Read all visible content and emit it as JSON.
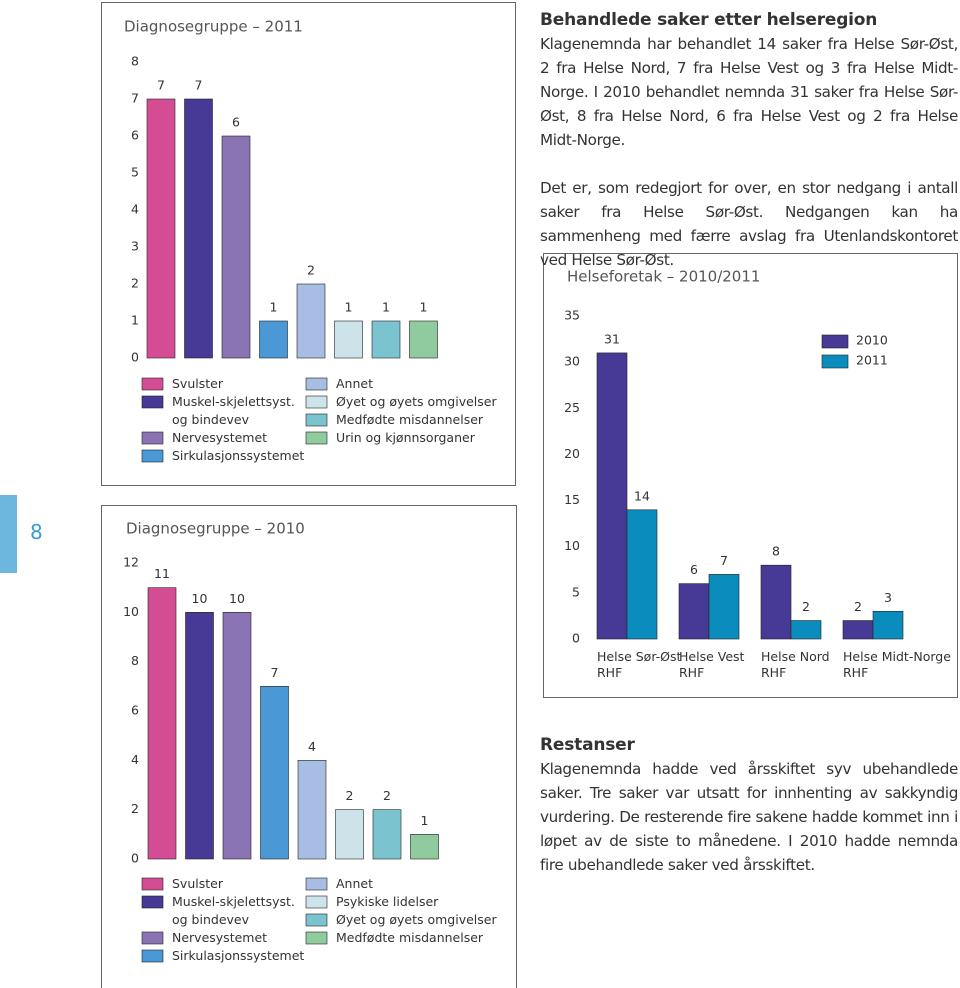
{
  "page_number": "8",
  "sections": [
    {
      "heading": "Behandlede saker etter helseregion",
      "paragraphs": [
        "Klagenemnda har behandlet 14 saker fra Helse Sør-Øst, 2 fra Helse Nord, 7 fra Helse Vest og 3 fra Helse Midt-Norge. I 2010 behandlet nemnda 31 saker fra Helse Sør-Øst, 8 fra Helse Nord, 6 fra Helse Vest og 2 fra Helse Midt-Norge.",
        "Det er, som redegjort for over, en stor nedgang i antall saker fra Helse Sør-Øst. Nedgangen kan ha sammenheng med færre avslag fra Utenlandskontoret ved Helse Sør-Øst."
      ]
    },
    {
      "heading": "Restanser",
      "paragraphs": [
        "Klagenemnda hadde ved årsskiftet syv ubehandlede saker. Tre saker var utsatt for innhenting av sakkyndig vurdering. De resterende fire sakene hadde kommet inn i løpet av de siste to månedene. I 2010 hadde nemnda fire ubehandlede saker ved årsskiftet."
      ]
    }
  ],
  "chart_data": [
    {
      "type": "bar",
      "title": "Diagnosegruppe – 2011",
      "categories": [
        "Svulster",
        "Muskel-skjelettsyst. og bindevev",
        "Nervesystemet",
        "Sirkulasjonssystemet",
        "Annet",
        "Øyet og øyets omgivelser",
        "Medfødte misdannelser",
        "Urin og kjønnsorganer"
      ],
      "values": [
        7,
        7,
        6,
        1,
        2,
        1,
        1,
        1
      ],
      "colors": [
        "#d44d94",
        "#463a96",
        "#8a74b3",
        "#4a98d6",
        "#a8bde4",
        "#cce3ea",
        "#7bc4cf",
        "#8fcb9e"
      ],
      "ylim": [
        0,
        8
      ],
      "yticks": [
        0,
        1,
        2,
        3,
        4,
        5,
        6,
        7,
        8
      ],
      "grid": false
    },
    {
      "type": "bar",
      "title": "Diagnosegruppe – 2010",
      "categories": [
        "Svulster",
        "Muskel-skjelettsyst. og bindevev",
        "Nervesystemet",
        "Sirkulasjonssystemet",
        "Annet",
        "Psykiske lidelser",
        "Øyet og øyets omgivelser",
        "Medfødte misdannelser"
      ],
      "values": [
        11,
        10,
        10,
        7,
        4,
        2,
        2,
        1
      ],
      "colors": [
        "#d44d94",
        "#463a96",
        "#8a74b3",
        "#4a98d6",
        "#a8bde4",
        "#cce3ea",
        "#7bc4cf",
        "#8fcb9e"
      ],
      "ylim": [
        0,
        12
      ],
      "yticks": [
        0,
        2,
        4,
        6,
        8,
        10,
        12
      ],
      "grid": false
    },
    {
      "type": "grouped-bar",
      "title": "Helseforetak – 2010/2011",
      "categories": [
        "Helse Sør-Øst RHF",
        "Helse Vest RHF",
        "Helse Nord RHF",
        "Helse Midt-Norge RHF"
      ],
      "series": [
        {
          "name": "2010",
          "color": "#463a96",
          "values": [
            31,
            6,
            8,
            2
          ]
        },
        {
          "name": "2011",
          "color": "#0a8dbd",
          "values": [
            14,
            7,
            2,
            3
          ]
        }
      ],
      "ylim": [
        0,
        35
      ],
      "yticks": [
        0,
        5,
        10,
        15,
        20,
        25,
        30,
        35
      ],
      "grid": false,
      "legend": "top-right"
    }
  ]
}
